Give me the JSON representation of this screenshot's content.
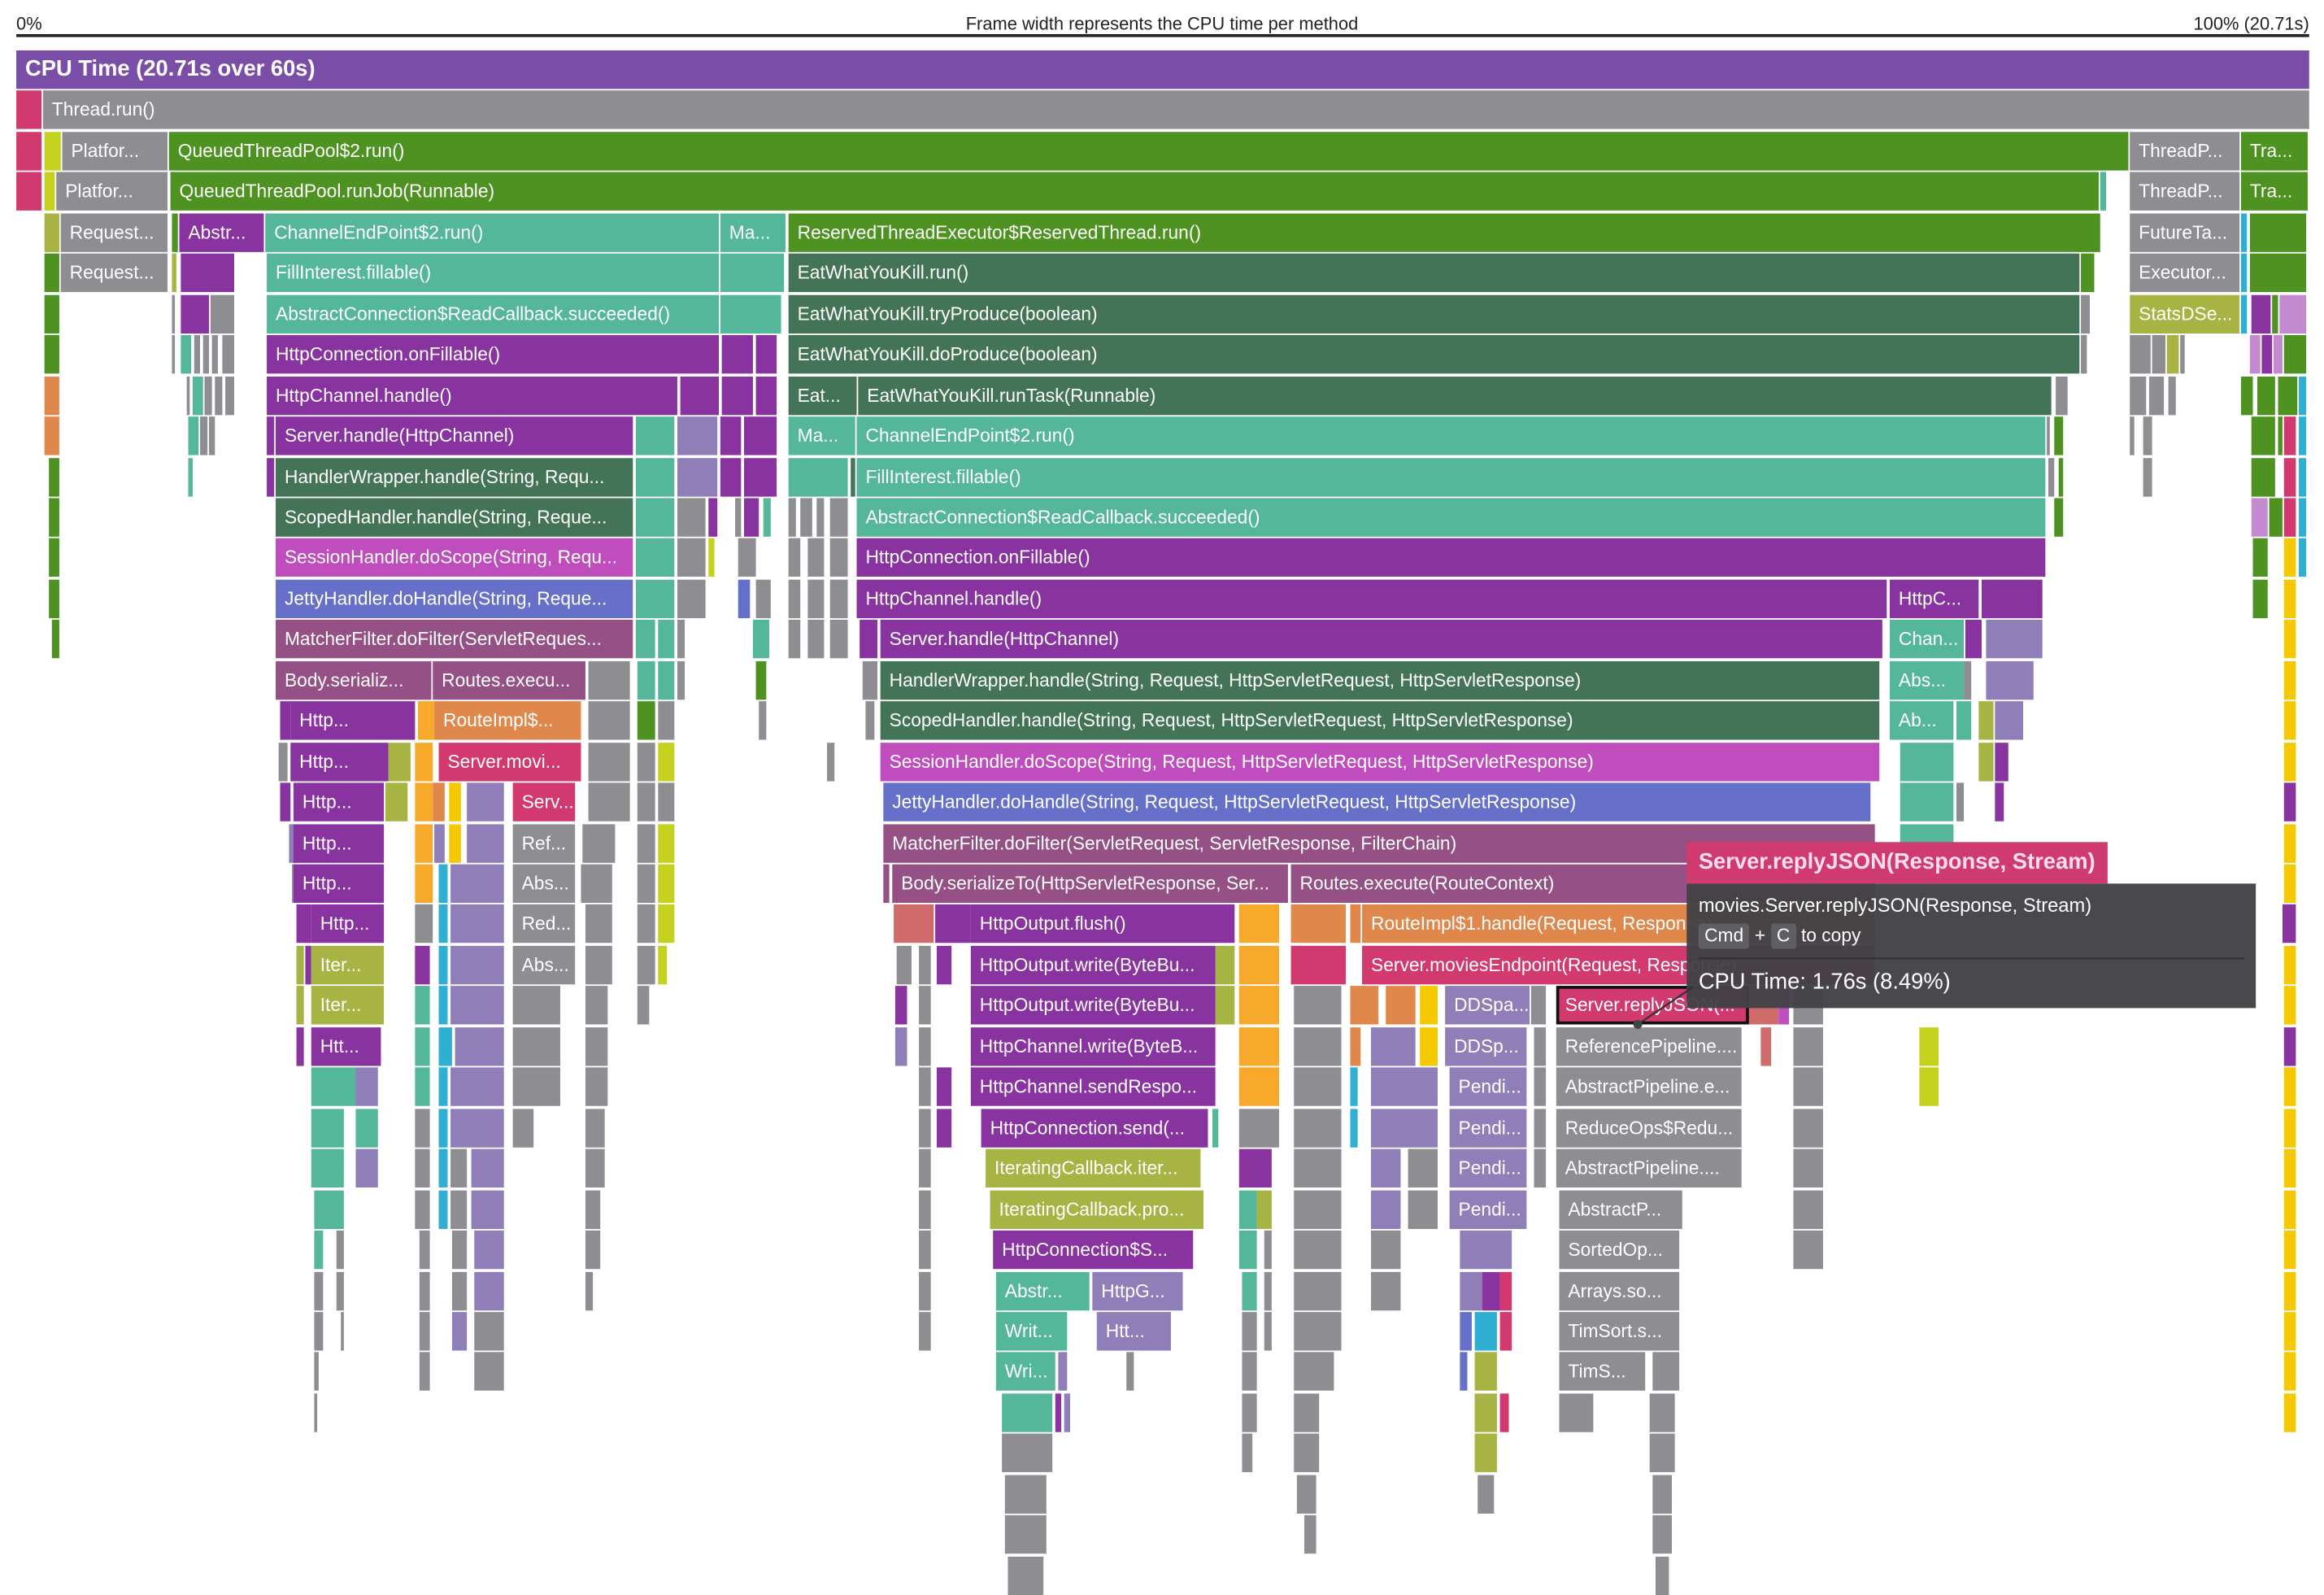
{
  "axis": {
    "left_label": "0%",
    "center_label": "Frame width represents the CPU time per method",
    "right_label": "100% (20.71s)"
  },
  "palette": {
    "hdr": "#7a4ea6",
    "g": "#8e8e92",
    "G": "#4e9321",
    "t": "#55b799",
    "p": "#8833a0",
    "d": "#447457",
    "m": "#955185",
    "M": "#bf4dbd",
    "b": "#6670c9",
    "o": "#e0874c",
    "r": "#d1396f",
    "l": "#a7b443",
    "y": "#f6a92a",
    "v": "#8f7eb8",
    "Y": "#f4c900",
    "c": "#2fb0d3",
    "L": "#c4d11d",
    "k": "#c48ad0",
    "s": "#cf6b6a"
  },
  "selected_frame": 75,
  "frames": [
    {
      "label": "CPU Time (20.71s over 60s)",
      "color": "hdr"
    },
    {
      "label": "Thread.run()",
      "color": "g"
    },
    {
      "label": "Platfor...",
      "color": "g"
    },
    {
      "label": "QueuedThreadPool$2.run()",
      "color": "G"
    },
    {
      "label": "ThreadP...",
      "color": "g"
    },
    {
      "label": "Tra...",
      "color": "G"
    },
    {
      "label": "Platfor...",
      "color": "g"
    },
    {
      "label": "QueuedThreadPool.runJob(Runnable)",
      "color": "G"
    },
    {
      "label": "ThreadP...",
      "color": "g"
    },
    {
      "label": "Tra...",
      "color": "G"
    },
    {
      "label": "Request...",
      "color": "g"
    },
    {
      "label": "Abstr...",
      "color": "p"
    },
    {
      "label": "ChannelEndPoint$2.run()",
      "color": "t"
    },
    {
      "label": "Ma...",
      "color": "t"
    },
    {
      "label": "ReservedThreadExecutor$ReservedThread.run()",
      "color": "G"
    },
    {
      "label": "FutureTa...",
      "color": "g"
    },
    {
      "label": "Request...",
      "color": "g"
    },
    {
      "label": "FillInterest.fillable()",
      "color": "t"
    },
    {
      "label": "EatWhatYouKill.run()",
      "color": "d"
    },
    {
      "label": "Executor...",
      "color": "g"
    },
    {
      "label": "AbstractConnection$ReadCallback.succeeded()",
      "color": "t"
    },
    {
      "label": "EatWhatYouKill.tryProduce(boolean)",
      "color": "d"
    },
    {
      "label": "StatsDSe...",
      "color": "l"
    },
    {
      "label": "HttpConnection.onFillable()",
      "color": "p"
    },
    {
      "label": "EatWhatYouKill.doProduce(boolean)",
      "color": "d"
    },
    {
      "label": "HttpChannel.handle()",
      "color": "p"
    },
    {
      "label": "Eat...",
      "color": "d"
    },
    {
      "label": "EatWhatYouKill.runTask(Runnable)",
      "color": "d"
    },
    {
      "label": "Server.handle(HttpChannel)",
      "color": "p"
    },
    {
      "label": "Ma...",
      "color": "t"
    },
    {
      "label": "ChannelEndPoint$2.run()",
      "color": "t"
    },
    {
      "label": "HandlerWrapper.handle(String, Requ...",
      "color": "d"
    },
    {
      "label": "FillInterest.fillable()",
      "color": "t"
    },
    {
      "label": "ScopedHandler.handle(String, Reque...",
      "color": "d"
    },
    {
      "label": "AbstractConnection$ReadCallback.succeeded()",
      "color": "t"
    },
    {
      "label": "SessionHandler.doScope(String, Requ...",
      "color": "M"
    },
    {
      "label": "HttpConnection.onFillable()",
      "color": "p"
    },
    {
      "label": "JettyHandler.doHandle(String, Reque...",
      "color": "b"
    },
    {
      "label": "HttpChannel.handle()",
      "color": "p"
    },
    {
      "label": "HttpC...",
      "color": "p"
    },
    {
      "label": "MatcherFilter.doFilter(ServletReques...",
      "color": "m"
    },
    {
      "label": "Server.handle(HttpChannel)",
      "color": "p"
    },
    {
      "label": "Chan...",
      "color": "t"
    },
    {
      "label": "Body.serializ...",
      "color": "m"
    },
    {
      "label": "Routes.execu...",
      "color": "m"
    },
    {
      "label": "HandlerWrapper.handle(String, Request, HttpServletRequest, HttpServletResponse)",
      "color": "d"
    },
    {
      "label": "Abs...",
      "color": "t"
    },
    {
      "label": "Http...",
      "color": "p"
    },
    {
      "label": "RouteImpl$...",
      "color": "o"
    },
    {
      "label": "ScopedHandler.handle(String, Request, HttpServletRequest, HttpServletResponse)",
      "color": "d"
    },
    {
      "label": "Ab...",
      "color": "t"
    },
    {
      "label": "Http...",
      "color": "p"
    },
    {
      "label": "Server.movi...",
      "color": "r"
    },
    {
      "label": "SessionHandler.doScope(String, Request, HttpServletRequest, HttpServletResponse)",
      "color": "M"
    },
    {
      "label": "Http...",
      "color": "p"
    },
    {
      "label": "Serv...",
      "color": "r"
    },
    {
      "label": "JettyHandler.doHandle(String, Request, HttpServletRequest, HttpServletResponse)",
      "color": "b"
    },
    {
      "label": "Http...",
      "color": "p"
    },
    {
      "label": "Ref...",
      "color": "g"
    },
    {
      "label": "MatcherFilter.doFilter(ServletRequest, ServletResponse, FilterChain)",
      "color": "m"
    },
    {
      "label": "Http...",
      "color": "p"
    },
    {
      "label": "Abs...",
      "color": "g"
    },
    {
      "label": "Body.serializeTo(HttpServletResponse, Ser...",
      "color": "m"
    },
    {
      "label": "Routes.execute(RouteContext)",
      "color": "m"
    },
    {
      "label": "Http...",
      "color": "p"
    },
    {
      "label": "Red...",
      "color": "g"
    },
    {
      "label": "HttpOutput.flush()",
      "color": "p"
    },
    {
      "label": "RouteImpl$1.handle(Request, Response)",
      "color": "o"
    },
    {
      "label": "Iter...",
      "color": "l"
    },
    {
      "label": "Abs...",
      "color": "g"
    },
    {
      "label": "HttpOutput.write(ByteBu...",
      "color": "p"
    },
    {
      "label": "Server.moviesEndpoint(Request, Response)",
      "color": "r"
    },
    {
      "label": "Iter...",
      "color": "l"
    },
    {
      "label": "HttpOutput.write(ByteBu...",
      "color": "p"
    },
    {
      "label": "DDSpa...",
      "color": "v"
    },
    {
      "label": "Server.replyJSON(...",
      "color": "r"
    },
    {
      "label": "Htt...",
      "color": "p"
    },
    {
      "label": "HttpChannel.write(ByteB...",
      "color": "p"
    },
    {
      "label": "DDSp...",
      "color": "v"
    },
    {
      "label": "ReferencePipeline....",
      "color": "g"
    },
    {
      "label": "HttpChannel.sendRespo...",
      "color": "p"
    },
    {
      "label": "Pendi...",
      "color": "v"
    },
    {
      "label": "AbstractPipeline.e...",
      "color": "g"
    },
    {
      "label": "HttpConnection.send(...",
      "color": "p"
    },
    {
      "label": "Pendi...",
      "color": "v"
    },
    {
      "label": "ReduceOps$Redu...",
      "color": "g"
    },
    {
      "label": "IteratingCallback.iter...",
      "color": "l"
    },
    {
      "label": "Pendi...",
      "color": "v"
    },
    {
      "label": "AbstractPipeline....",
      "color": "g"
    },
    {
      "label": "IteratingCallback.pro...",
      "color": "l"
    },
    {
      "label": "Pendi...",
      "color": "v"
    },
    {
      "label": "AbstractP...",
      "color": "g"
    },
    {
      "label": "HttpConnection$S...",
      "color": "p"
    },
    {
      "label": "SortedOp...",
      "color": "g"
    },
    {
      "label": "Abstr...",
      "color": "t"
    },
    {
      "label": "HttpG...",
      "color": "v"
    },
    {
      "label": "Arrays.so...",
      "color": "g"
    },
    {
      "label": "Writ...",
      "color": "t"
    },
    {
      "label": "Htt...",
      "color": "v"
    },
    {
      "label": "TimSort.s...",
      "color": "g"
    },
    {
      "label": "Wri...",
      "color": "t"
    },
    {
      "label": "TimS...",
      "color": "g"
    }
  ],
  "tooltip": {
    "title": "Server.replyJSON(Response, Stream)",
    "signature": "movies.Server.replyJSON(Response, Stream)",
    "copy_key1": "Cmd",
    "copy_plus": "+",
    "copy_key2": "C",
    "copy_text": "to copy",
    "cpu_time": "CPU Time: 1.76s (8.49%)"
  }
}
